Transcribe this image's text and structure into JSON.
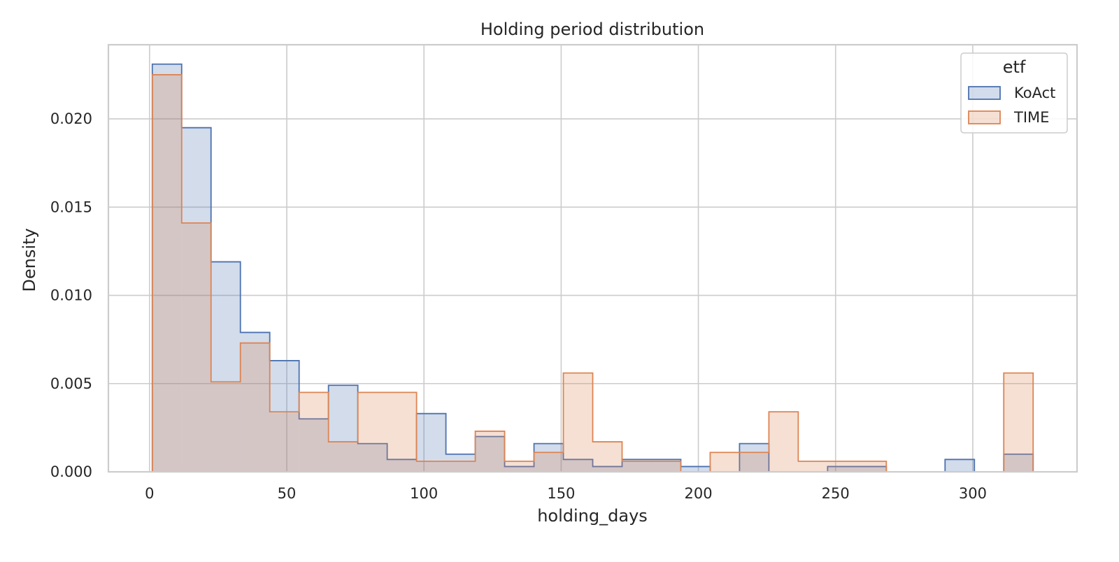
{
  "chart_data": {
    "type": "histogram",
    "title": "Holding period distribution",
    "xlabel": "holding_days",
    "ylabel": "Density",
    "xlim": [
      -15,
      338
    ],
    "ylim": [
      0,
      0.0242
    ],
    "x_ticks": [
      0,
      50,
      100,
      150,
      200,
      250,
      300
    ],
    "y_ticks": [
      0.0,
      0.005,
      0.01,
      0.015,
      0.02
    ],
    "x_tick_labels": [
      "0",
      "50",
      "100",
      "150",
      "200",
      "250",
      "300"
    ],
    "y_tick_labels": [
      "0.000",
      "0.005",
      "0.010",
      "0.015",
      "0.020"
    ],
    "grid": true,
    "bin_edges": [
      1,
      11.7,
      22.4,
      33.1,
      43.8,
      54.5,
      65.2,
      75.9,
      86.6,
      97.3,
      108,
      118.7,
      129.4,
      140.1,
      150.8,
      161.5,
      172.2,
      182.9,
      193.6,
      204.3,
      215,
      225.7,
      236.4,
      247.1,
      257.8,
      268.5,
      279.2,
      289.9,
      300.6,
      311.3,
      322
    ],
    "legend": {
      "title": "etf",
      "position": "top-right"
    },
    "series": [
      {
        "name": "KoAct",
        "color": "#4c72b0",
        "fill": "rgba(76,114,176,0.25)",
        "values": [
          0.0231,
          0.0195,
          0.0119,
          0.0079,
          0.0063,
          0.003,
          0.0049,
          0.0016,
          0.0007,
          0.0033,
          0.001,
          0.002,
          0.0003,
          0.0016,
          0.0007,
          0.0003,
          0.0007,
          0.0007,
          0.0003,
          0.0,
          0.0016,
          0.0,
          0.0,
          0.0003,
          0.0003,
          0.0,
          0.0,
          0.0007,
          0.0,
          0.001
        ]
      },
      {
        "name": "TIME",
        "color": "#dd8452",
        "fill": "rgba(221,132,82,0.25)",
        "values": [
          0.0225,
          0.0141,
          0.0051,
          0.0073,
          0.0034,
          0.0045,
          0.0017,
          0.0045,
          0.0045,
          0.0006,
          0.0006,
          0.0023,
          0.0006,
          0.0011,
          0.0056,
          0.0017,
          0.0006,
          0.0006,
          0.0,
          0.0011,
          0.0011,
          0.0034,
          0.0006,
          0.0006,
          0.0006,
          0.0,
          0.0,
          0.0,
          0.0,
          0.0056
        ]
      }
    ]
  }
}
